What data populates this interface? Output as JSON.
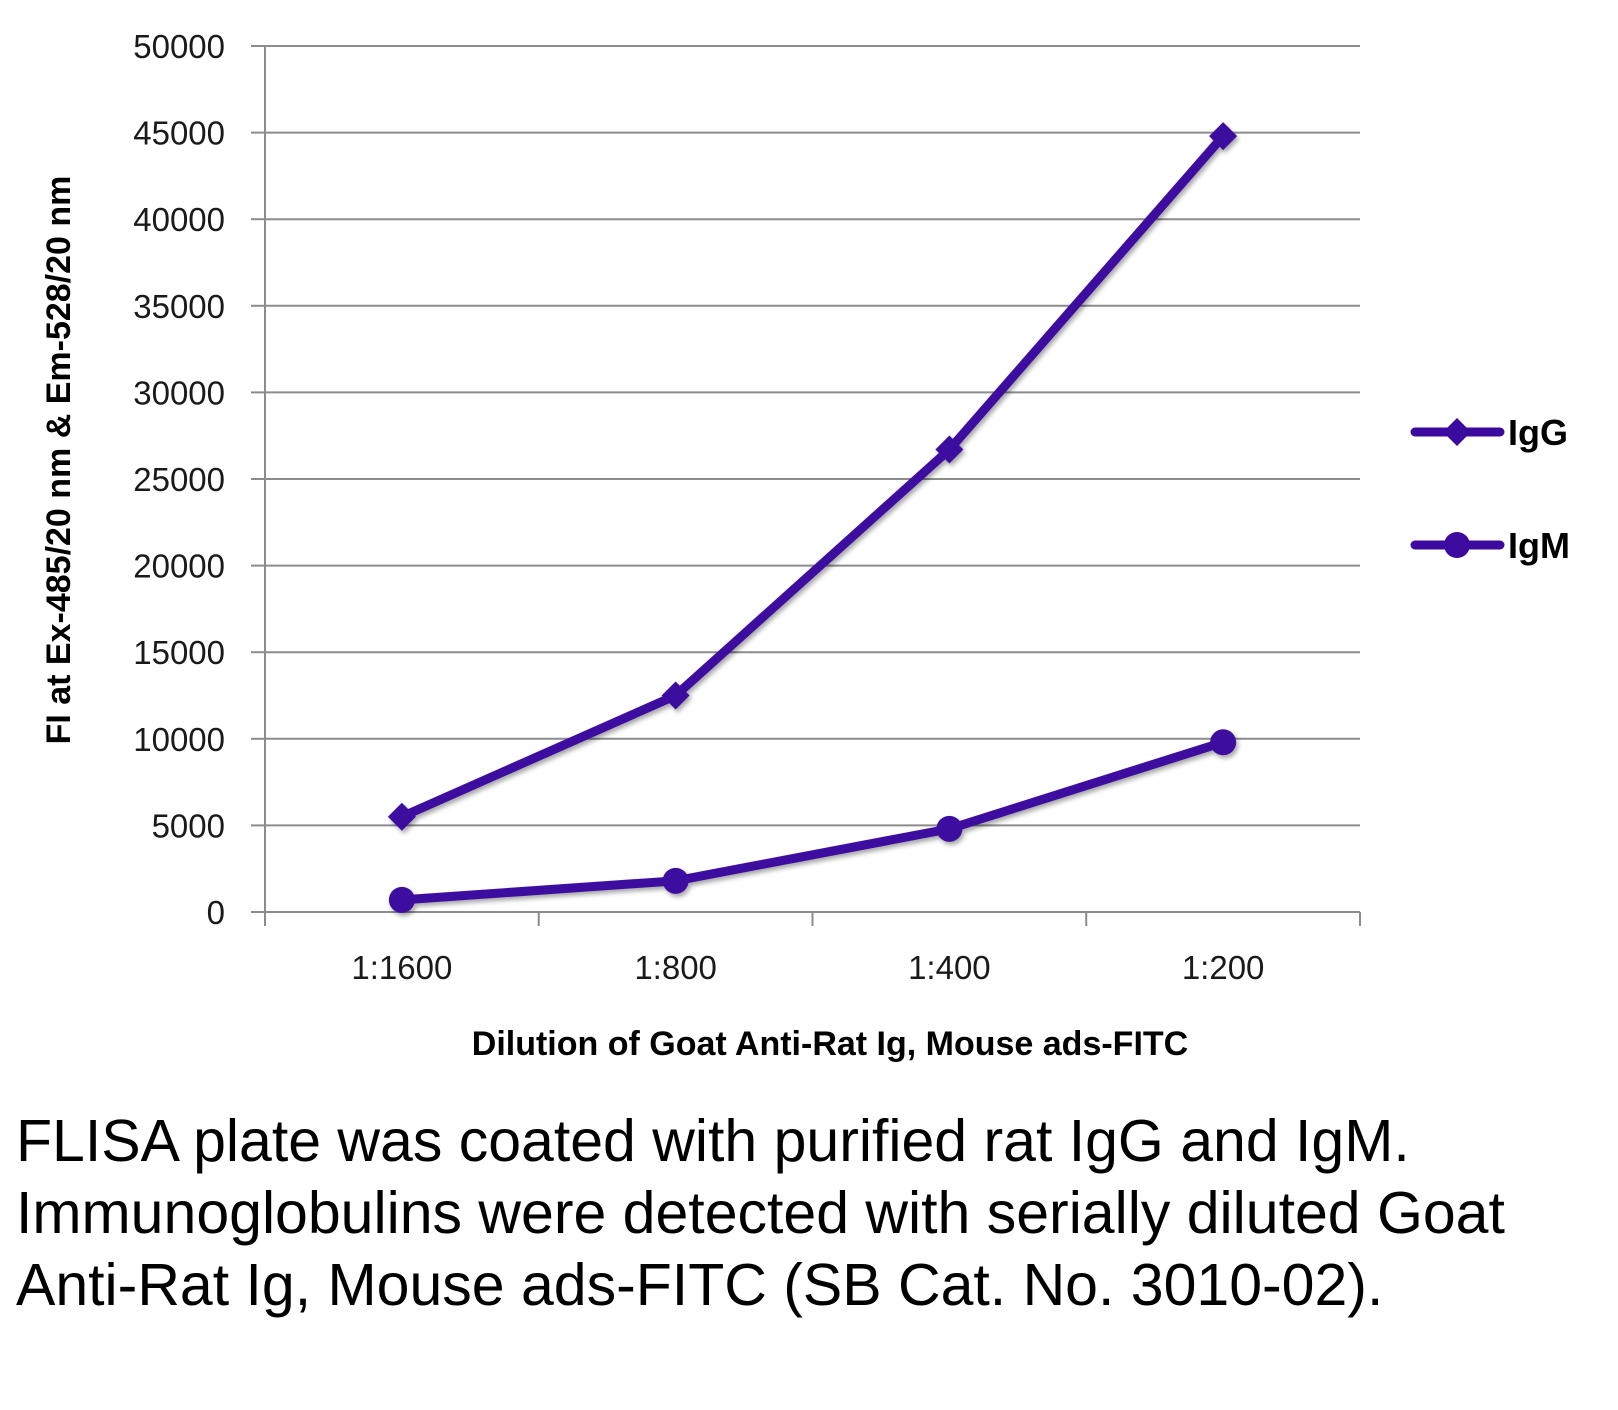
{
  "chart_data": {
    "type": "line",
    "categories": [
      "1:1600",
      "1:800",
      "1:400",
      "1:200"
    ],
    "series": [
      {
        "name": "IgG",
        "marker": "diamond",
        "values": [
          5500,
          12500,
          26700,
          44800
        ]
      },
      {
        "name": "IgM",
        "marker": "circle",
        "values": [
          700,
          1800,
          4800,
          9800
        ]
      }
    ],
    "yticks": [
      "0",
      "5000",
      "10000",
      "15000",
      "20000",
      "25000",
      "30000",
      "35000",
      "40000",
      "45000",
      "50000"
    ],
    "ylim": [
      0,
      50000
    ],
    "ylabel": "FI at Ex-485/20 nm & Em-528/20 nm",
    "xlabel": "Dilution of Goat Anti-Rat Ig, Mouse ads-FITC",
    "grid": true,
    "legend": "right",
    "line_color": "#3d0aa0"
  },
  "caption": "FLISA plate was coated with purified rat IgG and IgM.  Immunoglobulins were detected with serially diluted Goat Anti-Rat Ig, Mouse ads-FITC (SB Cat. No. 3010-02)."
}
